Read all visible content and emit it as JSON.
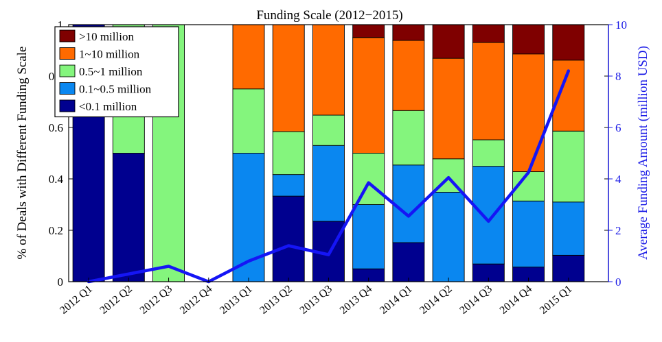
{
  "chart_data": {
    "type": "bar",
    "stacked": true,
    "title": "Funding Scale (2012−2015)",
    "xlabel": "",
    "ylabel": "% of Deals with Different Funding Scale",
    "y2label": "Average Funding Amount (million USD)",
    "ylim": [
      0,
      1
    ],
    "y2lim": [
      0,
      10
    ],
    "yticks": [
      "0",
      "0.2",
      "0.4",
      "0.6",
      "0.8",
      "1"
    ],
    "y2ticks": [
      "0",
      "2",
      "4",
      "6",
      "8",
      "10"
    ],
    "categories": [
      "2012 Q1",
      "2012 Q2",
      "2012 Q3",
      "2012 Q4",
      "2013 Q1",
      "2013 Q2",
      "2013 Q3",
      "2013 Q4",
      "2014 Q1",
      "2014 Q2",
      "2014 Q3",
      "2014 Q4",
      "2015 Q1"
    ],
    "series": [
      {
        "name": "<0.1 million",
        "color": "#00008f",
        "values": [
          1.0,
          0.5,
          0,
          0,
          0,
          0.333,
          0.235,
          0.05,
          0.152,
          0,
          0.069,
          0.057,
          0.103
        ]
      },
      {
        "name": "0.1~0.5 million",
        "color": "#0a87f0",
        "values": [
          0,
          0,
          0,
          0,
          0.5,
          0.084,
          0.295,
          0.25,
          0.302,
          0.348,
          0.38,
          0.257,
          0.207
        ]
      },
      {
        "name": "0.5~1 million",
        "color": "#84f57d",
        "values": [
          0,
          0.5,
          1.0,
          0,
          0.25,
          0.167,
          0.118,
          0.2,
          0.212,
          0.13,
          0.103,
          0.114,
          0.276
        ]
      },
      {
        "name": "1~10 million",
        "color": "#ff6a00",
        "values": [
          0,
          0,
          0,
          0,
          0.25,
          0.416,
          0.352,
          0.45,
          0.273,
          0.391,
          0.379,
          0.458,
          0.276
        ]
      },
      {
        "name": ">10 million",
        "color": "#7f0000",
        "values": [
          0,
          0,
          0,
          0,
          0,
          0,
          0,
          0.05,
          0.061,
          0.131,
          0.069,
          0.114,
          0.138
        ]
      }
    ],
    "line": {
      "name": "Average Funding Amount",
      "color": "#1515f5",
      "axis": "right",
      "values": [
        0.0,
        0.3,
        0.6,
        0.0,
        0.8,
        1.4,
        1.05,
        3.85,
        2.55,
        4.05,
        2.35,
        4.25,
        8.2
      ]
    },
    "legend": {
      "location": "top-left",
      "order": [
        ">10 million",
        "1~10 million",
        "0.5~1 million",
        "0.1~0.5 million",
        "<0.1 million"
      ]
    }
  }
}
